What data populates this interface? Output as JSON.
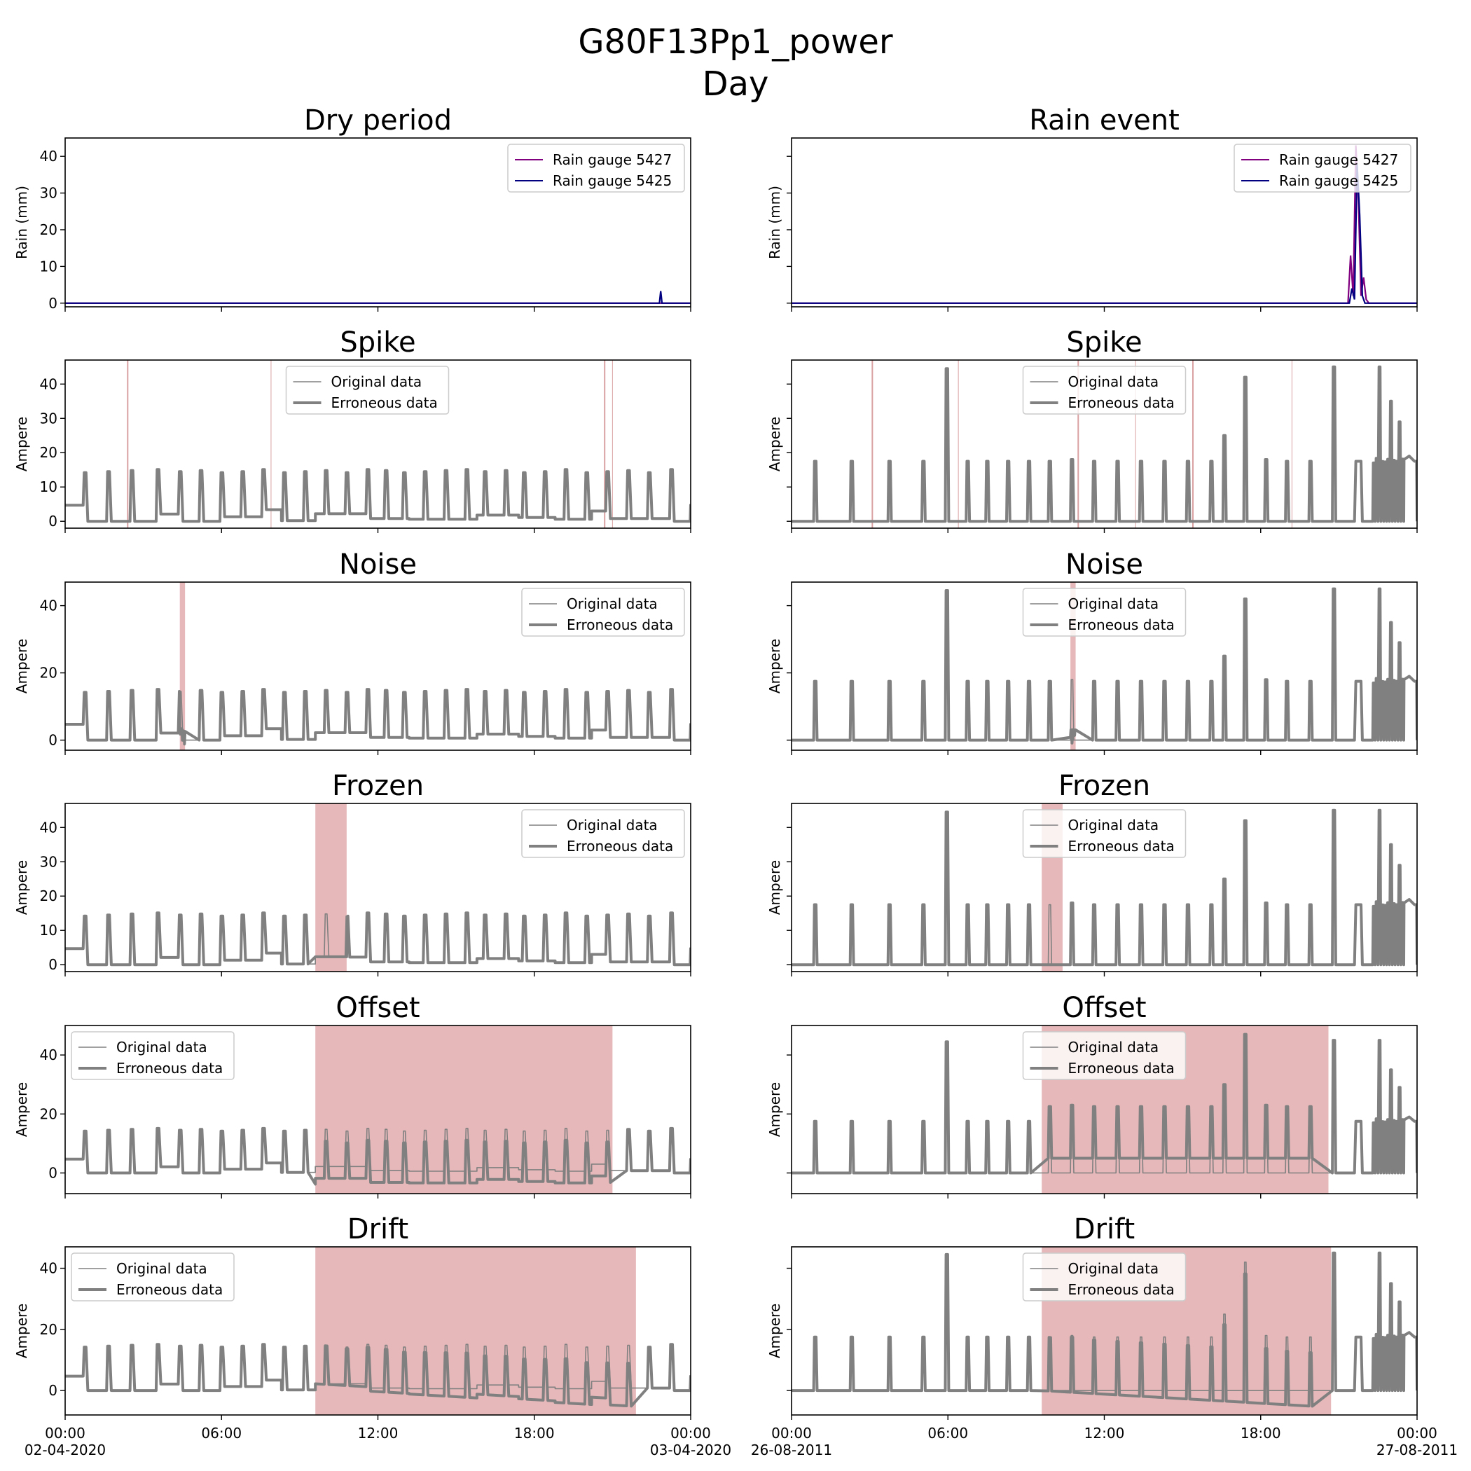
{
  "figure": {
    "title_line1": "G80F13Pp1_power",
    "title_line2": "Day"
  },
  "columns": [
    {
      "title": "Dry period",
      "x_tick_labels": [
        "00:00",
        "06:00",
        "12:00",
        "18:00",
        "00:00"
      ],
      "x_date_left": "02-04-2020",
      "x_date_right": "03-04-2020"
    },
    {
      "title": "Rain event",
      "x_tick_labels": [
        "00:00",
        "06:00",
        "12:00",
        "18:00",
        "00:00"
      ],
      "x_date_left": "26-08-2011",
      "x_date_right": "27-08-2011"
    }
  ],
  "colors": {
    "gauge_5427": "#800080",
    "gauge_5425": "#000080",
    "data": "#808080",
    "error_band": "#e6b8ba",
    "spike_line": "#d08a8c"
  },
  "chart_data": [
    {
      "type": "line",
      "title": "Dry period",
      "ylabel": "Rain (mm)",
      "ylim": [
        -1,
        45
      ],
      "yticks": [
        0,
        10,
        20,
        30,
        40
      ],
      "legend": "top-right",
      "x_unit": "hours since 00:00 on 02-04-2020",
      "series": [
        {
          "name": "Rain gauge 5427",
          "x": [
            0,
            24
          ],
          "y": [
            0,
            0
          ]
        },
        {
          "name": "Rain gauge 5425",
          "x": [
            0,
            22.8,
            22.85,
            22.9,
            24
          ],
          "y": [
            0,
            0,
            3.3,
            0,
            0
          ]
        }
      ]
    },
    {
      "type": "line",
      "title": "Rain event",
      "ylabel": "Rain (mm)",
      "ylim": [
        -1,
        45
      ],
      "yticks": [
        0,
        10,
        20,
        30,
        40
      ],
      "legend": "top-right",
      "x_unit": "hours since 00:00 on 26-08-2011",
      "series": [
        {
          "name": "Rain gauge 5427",
          "x": [
            0,
            21.35,
            21.45,
            21.55,
            21.65,
            21.75,
            21.85,
            21.95,
            22.05,
            22.15,
            22.3,
            24
          ],
          "y": [
            0,
            0,
            13,
            2,
            43,
            28,
            2,
            7,
            1,
            0,
            0,
            0
          ]
        },
        {
          "name": "Rain gauge 5425",
          "x": [
            0,
            21.4,
            21.5,
            21.6,
            21.7,
            21.8,
            21.9,
            22.0,
            22.2,
            24
          ],
          "y": [
            0,
            0,
            4,
            1,
            38,
            24,
            2,
            0,
            0,
            0
          ]
        }
      ]
    },
    {
      "type": "line",
      "title": "Spike",
      "ylabel": "Ampere",
      "ylim": [
        -2,
        47
      ],
      "yticks": [
        0,
        10,
        20,
        30,
        40
      ],
      "legend": "top-center",
      "error_lines": [
        2.4,
        7.9,
        20.7,
        21.0
      ],
      "error_type": "spike"
    },
    {
      "type": "line",
      "title": "Spike",
      "ylabel": "Ampere",
      "ylim": [
        -2,
        47
      ],
      "yticks": [
        0,
        10,
        20,
        30,
        40
      ],
      "legend": "top-center",
      "error_lines": [
        3.1,
        6.4,
        11.0,
        13.2,
        15.4,
        19.2
      ],
      "error_type": "spike"
    },
    {
      "type": "line",
      "title": "Noise",
      "ylabel": "Ampere",
      "ylim": [
        -3,
        47
      ],
      "yticks": [
        0,
        20,
        40
      ],
      "legend": "top-right",
      "error_region": [
        4.4,
        4.6
      ]
    },
    {
      "type": "line",
      "title": "Noise",
      "ylabel": "Ampere",
      "ylim": [
        -3,
        47
      ],
      "yticks": [
        0,
        20,
        40
      ],
      "legend": "top-center",
      "error_region": [
        10.7,
        10.9
      ]
    },
    {
      "type": "line",
      "title": "Frozen",
      "ylabel": "Ampere",
      "ylim": [
        -2,
        47
      ],
      "yticks": [
        0,
        10,
        20,
        30,
        40
      ],
      "legend": "top-right",
      "error_region": [
        9.6,
        10.8
      ]
    },
    {
      "type": "line",
      "title": "Frozen",
      "ylabel": "Ampere",
      "ylim": [
        -2,
        47
      ],
      "yticks": [
        0,
        10,
        20,
        30,
        40
      ],
      "legend": "top-center",
      "error_region": [
        9.6,
        10.4
      ]
    },
    {
      "type": "line",
      "title": "Offset",
      "ylabel": "Ampere",
      "ylim": [
        -7,
        50
      ],
      "yticks": [
        0,
        20,
        40
      ],
      "legend": "top-left",
      "error_region": [
        9.6,
        21.0
      ],
      "offset": -4
    },
    {
      "type": "line",
      "title": "Offset",
      "ylabel": "Ampere",
      "ylim": [
        -7,
        50
      ],
      "yticks": [
        0,
        20,
        40
      ],
      "legend": "top-center",
      "error_region": [
        9.6,
        20.6
      ],
      "offset": 5
    },
    {
      "type": "line",
      "title": "Drift",
      "ylabel": "Ampere",
      "ylim": [
        -8,
        47
      ],
      "yticks": [
        0,
        20,
        40
      ],
      "legend": "top-left",
      "error_region": [
        9.6,
        21.9
      ],
      "drift_end": -6
    },
    {
      "type": "line",
      "title": "Drift",
      "ylabel": "Ampere",
      "ylim": [
        -8,
        47
      ],
      "yticks": [
        0,
        20,
        40
      ],
      "legend": "top-center",
      "error_region": [
        9.6,
        20.7
      ],
      "drift_end": -5.5
    }
  ],
  "legend_labels": {
    "original": "Original data",
    "erroneous": "Erroneous data",
    "gauge_5427": "Rain gauge 5427",
    "gauge_5425": "Rain gauge 5425"
  }
}
